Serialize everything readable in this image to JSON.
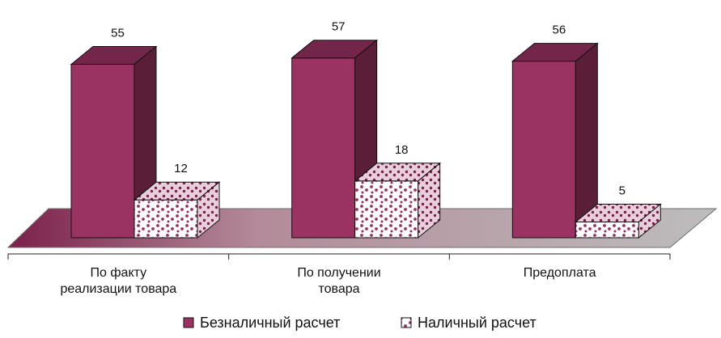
{
  "chart_data": {
    "type": "bar",
    "categories": [
      [
        "По факту",
        "реализации товара"
      ],
      [
        "По получении",
        "товара"
      ],
      [
        "Предоплата"
      ]
    ],
    "series": [
      {
        "name": "Безналичный расчет",
        "values": [
          55,
          57,
          56
        ],
        "color": "#9b3362",
        "pattern": "solid"
      },
      {
        "name": "Наличный расчет",
        "values": [
          12,
          18,
          5
        ],
        "color": "#9b3362",
        "pattern": "dotted"
      }
    ],
    "floor_color": "#a9a9a9",
    "grid": false,
    "legend_position": "bottom"
  }
}
